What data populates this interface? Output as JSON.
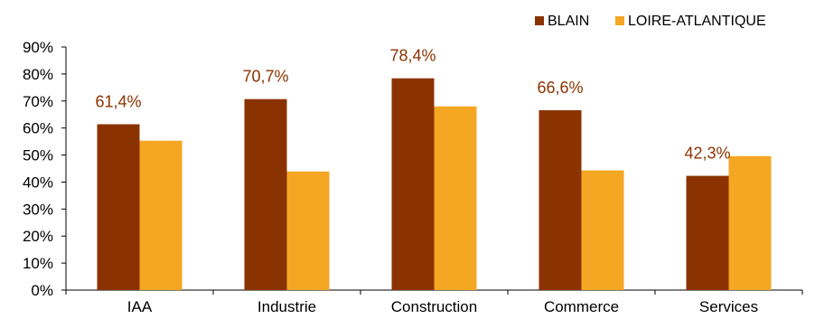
{
  "chart_data": {
    "type": "bar",
    "title": "",
    "xlabel": "",
    "ylabel": "",
    "categories": [
      "IAA",
      "Industrie",
      "Construction",
      "Commerce",
      "Services"
    ],
    "series": [
      {
        "name": "BLAIN",
        "color": "#8B3300",
        "values": [
          61.4,
          70.7,
          78.4,
          66.6,
          42.3
        ],
        "data_labels": [
          "61,4%",
          "70,7%",
          "78,4%",
          "66,6%",
          "42,3%"
        ]
      },
      {
        "name": "LOIRE-ATLANTIQUE",
        "color": "#F5A623",
        "values": [
          55.3,
          43.9,
          68.0,
          44.3,
          49.6
        ]
      }
    ],
    "ylim": [
      0,
      90
    ],
    "yticks": [
      0,
      10,
      20,
      30,
      40,
      50,
      60,
      70,
      80,
      90
    ],
    "ytick_labels": [
      "0%",
      "10%",
      "20%",
      "30%",
      "40%",
      "50%",
      "60%",
      "70%",
      "80%",
      "90%"
    ],
    "data_label_color": "#8B3300",
    "grid": false,
    "legend_position": "top-right"
  }
}
